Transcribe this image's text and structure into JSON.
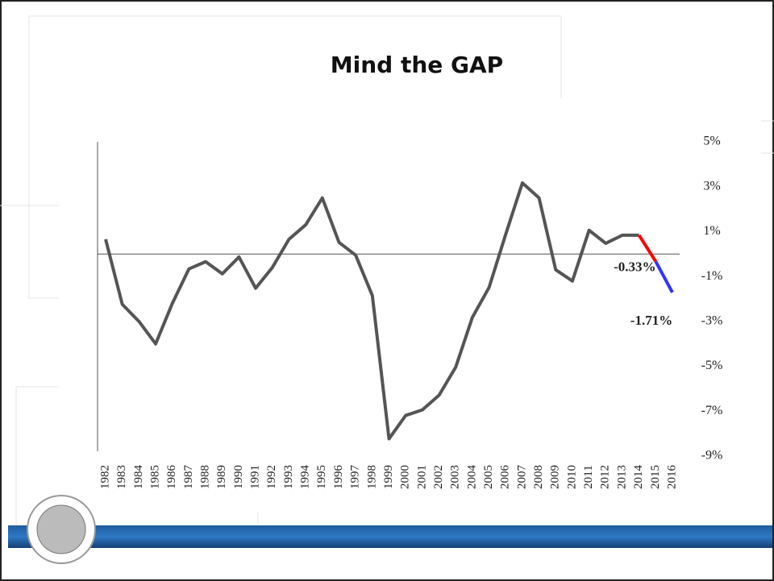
{
  "chart_data": {
    "type": "line",
    "title": "Mind the GAP",
    "categories": [
      "1982",
      "1983",
      "1984",
      "1985",
      "1986",
      "1987",
      "1988",
      "1989",
      "1990",
      "1991",
      "1992",
      "1993",
      "1994",
      "1995",
      "1996",
      "1997",
      "1998",
      "1999",
      "2000",
      "2001",
      "2002",
      "2003",
      "2004",
      "2005",
      "2006",
      "2007",
      "2008",
      "2009",
      "2010",
      "2011",
      "2012",
      "2013",
      "2014",
      "2015",
      "2016"
    ],
    "series": [
      {
        "values": [
          0.66,
          -2.24,
          -3.0,
          -4.0,
          -2.2,
          -0.66,
          -0.34,
          -0.88,
          -0.13,
          -1.52,
          -0.6,
          0.66,
          1.3,
          2.5,
          0.52,
          -0.05,
          -1.85,
          -8.23,
          -7.19,
          -6.94,
          -6.29,
          -5.04,
          -2.82,
          -1.49,
          0.88,
          3.17,
          2.5,
          -0.7,
          -1.2,
          1.06,
          0.48,
          0.84,
          0.84,
          -0.33,
          -1.71
        ],
        "value_labels": [
          null,
          null,
          null,
          null,
          null,
          null,
          null,
          null,
          null,
          null,
          null,
          null,
          null,
          null,
          null,
          null,
          null,
          null,
          null,
          null,
          null,
          null,
          null,
          null,
          null,
          null,
          null,
          null,
          null,
          null,
          null,
          null,
          null,
          "-0.33%",
          "-1.71%"
        ],
        "point_colors": [
          "#555555",
          "#555555",
          "#555555",
          "#555555",
          "#555555",
          "#555555",
          "#555555",
          "#555555",
          "#555555",
          "#555555",
          "#555555",
          "#555555",
          "#555555",
          "#555555",
          "#555555",
          "#555555",
          "#555555",
          "#555555",
          "#555555",
          "#555555",
          "#555555",
          "#555555",
          "#555555",
          "#555555",
          "#555555",
          "#555555",
          "#555555",
          "#555555",
          "#555555",
          "#555555",
          "#555555",
          "#555555",
          "#555555",
          "#ff0000",
          "#3333ff"
        ]
      }
    ],
    "ylim": [
      -9,
      5
    ],
    "yticks": [
      {
        "value": 5,
        "label": "5%"
      },
      {
        "value": 3,
        "label": "3%"
      },
      {
        "value": 1,
        "label": "1%"
      },
      {
        "value": -1,
        "label": "-1%"
      },
      {
        "value": -3,
        "label": "-3%"
      },
      {
        "value": -5,
        "label": "-5%"
      },
      {
        "value": -7,
        "label": "-7%"
      },
      {
        "value": -9,
        "label": "-9%"
      }
    ]
  }
}
